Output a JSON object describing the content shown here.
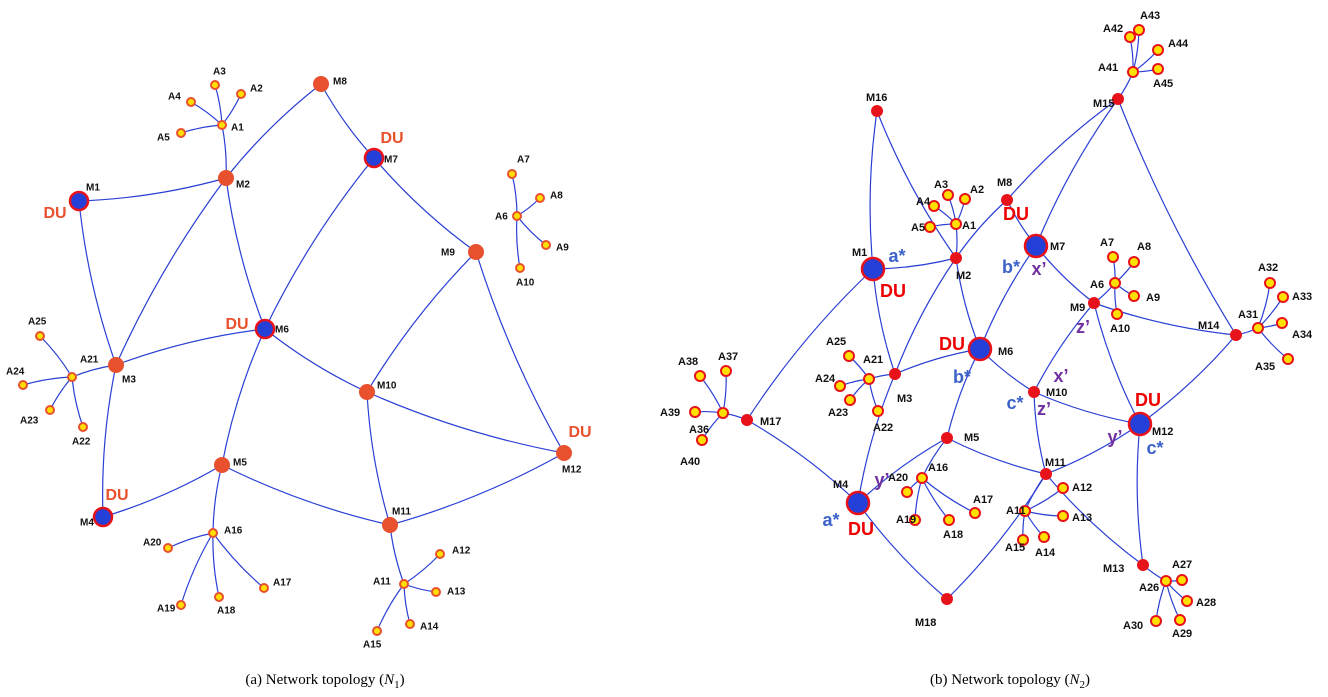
{
  "diagrams": [
    {
      "nodes": [
        "M1",
        "M2",
        "M3",
        "M4",
        "M5",
        "M6",
        "M7",
        "M8",
        "M9",
        "M10",
        "M11",
        "M12",
        "A1",
        "A2",
        "A3",
        "A4",
        "A5",
        "A6",
        "A7",
        "A8",
        "A9",
        "A10",
        "A11",
        "A12",
        "A13",
        "A14",
        "A15",
        "A16",
        "A17",
        "A18",
        "A19",
        "A20",
        "A21",
        "A22",
        "A23",
        "A24",
        "A25"
      ],
      "annotations": [
        "DU",
        "DU",
        "DU",
        "DU",
        "DU"
      ],
      "caption": {
        "prefix": "(a) Network topology (",
        "var": "N",
        "sub": "1",
        "suffix": ")"
      }
    },
    {
      "nodes": [
        "M1",
        "M2",
        "M3",
        "M4",
        "M5",
        "M6",
        "M7",
        "M8",
        "M9",
        "M10",
        "M11",
        "M12",
        "M13",
        "M14",
        "M15",
        "M16",
        "M17",
        "M18",
        "A1",
        "A2",
        "A3",
        "A4",
        "A5",
        "A6",
        "A7",
        "A8",
        "A9",
        "A10",
        "A11",
        "A12",
        "A13",
        "A14",
        "A15",
        "A16",
        "A17",
        "A18",
        "A19",
        "A20",
        "A21",
        "A22",
        "A23",
        "A24",
        "A25",
        "A26",
        "A27",
        "A28",
        "A29",
        "A30",
        "A31",
        "A32",
        "A33",
        "A34",
        "A35",
        "A36",
        "A37",
        "A38",
        "A39",
        "A40",
        "A41",
        "A42",
        "A43",
        "A44",
        "A45"
      ],
      "annotations": [
        "a*",
        "DU",
        "DU",
        "b*",
        "x’",
        "DU",
        "b*",
        "z’",
        "x’",
        "c*",
        "z’",
        "DU",
        "y’",
        "c*",
        "y’",
        "a*",
        "DU"
      ],
      "caption": {
        "prefix": "(b) Network topology (",
        "var": "N",
        "sub": "2",
        "suffix": ")"
      }
    }
  ]
}
